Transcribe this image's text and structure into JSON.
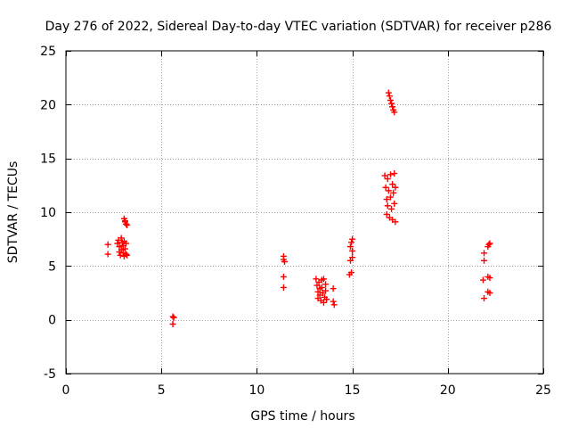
{
  "chart_data": {
    "type": "scatter",
    "title": "Day 276 of 2022, Sidereal Day-to-day VTEC variation (SDTVAR) for receiver p286",
    "xlabel": "GPS time / hours",
    "ylabel": "SDTVAR / TECUs",
    "xlim": [
      0,
      25
    ],
    "ylim": [
      -5,
      25
    ],
    "xticks": [
      0,
      5,
      10,
      15,
      20,
      25
    ],
    "yticks": [
      -5,
      0,
      5,
      10,
      15,
      20,
      25
    ],
    "grid": true,
    "marker": "+",
    "color": "#ff0000",
    "series": [
      {
        "name": "SDTVAR",
        "points": [
          [
            2.2,
            7.0
          ],
          [
            2.2,
            6.1
          ],
          [
            2.7,
            7.1
          ],
          [
            2.75,
            7.4
          ],
          [
            2.8,
            6.8
          ],
          [
            2.8,
            6.3
          ],
          [
            2.85,
            6.0
          ],
          [
            2.9,
            7.6
          ],
          [
            2.9,
            6.5
          ],
          [
            2.95,
            7.2
          ],
          [
            3.0,
            6.9
          ],
          [
            3.0,
            6.2
          ],
          [
            3.05,
            7.3
          ],
          [
            3.05,
            5.9
          ],
          [
            3.1,
            6.6
          ],
          [
            3.15,
            7.1
          ],
          [
            3.15,
            6.1
          ],
          [
            3.2,
            6.0
          ],
          [
            3.05,
            9.4
          ],
          [
            3.1,
            9.1
          ],
          [
            3.15,
            8.9
          ],
          [
            3.1,
            9.2
          ],
          [
            3.2,
            8.8
          ],
          [
            5.6,
            0.3
          ],
          [
            5.6,
            -0.4
          ],
          [
            5.65,
            0.2
          ],
          [
            11.4,
            5.9
          ],
          [
            11.4,
            5.6
          ],
          [
            11.45,
            5.4
          ],
          [
            11.4,
            4.0
          ],
          [
            11.4,
            3.0
          ],
          [
            13.1,
            3.8
          ],
          [
            13.15,
            3.2
          ],
          [
            13.2,
            2.6
          ],
          [
            13.2,
            2.0
          ],
          [
            13.25,
            3.5
          ],
          [
            13.3,
            2.9
          ],
          [
            13.3,
            2.3
          ],
          [
            13.35,
            1.8
          ],
          [
            13.4,
            3.7
          ],
          [
            13.4,
            3.0
          ],
          [
            13.45,
            2.5
          ],
          [
            13.5,
            1.6
          ],
          [
            13.5,
            3.8
          ],
          [
            13.55,
            2.1
          ],
          [
            13.6,
            3.3
          ],
          [
            13.6,
            2.7
          ],
          [
            13.65,
            1.9
          ],
          [
            14.0,
            2.9
          ],
          [
            14.0,
            1.7
          ],
          [
            14.05,
            1.4
          ],
          [
            14.85,
            4.2
          ],
          [
            14.9,
            6.8
          ],
          [
            14.9,
            5.5
          ],
          [
            14.95,
            7.2
          ],
          [
            14.95,
            4.4
          ],
          [
            15.0,
            6.4
          ],
          [
            15.0,
            5.8
          ],
          [
            15.0,
            7.5
          ],
          [
            16.7,
            13.4
          ],
          [
            16.75,
            12.3
          ],
          [
            16.8,
            11.2
          ],
          [
            16.8,
            9.8
          ],
          [
            16.85,
            13.1
          ],
          [
            16.85,
            10.6
          ],
          [
            16.9,
            12.0
          ],
          [
            16.95,
            9.5
          ],
          [
            17.0,
            13.5
          ],
          [
            17.0,
            11.4
          ],
          [
            17.05,
            10.3
          ],
          [
            17.1,
            12.6
          ],
          [
            17.1,
            9.3
          ],
          [
            17.15,
            11.8
          ],
          [
            17.2,
            13.6
          ],
          [
            17.2,
            10.8
          ],
          [
            17.25,
            12.3
          ],
          [
            17.25,
            9.1
          ],
          [
            16.9,
            21.1
          ],
          [
            16.95,
            20.8
          ],
          [
            17.0,
            20.4
          ],
          [
            17.05,
            20.1
          ],
          [
            17.1,
            19.8
          ],
          [
            17.15,
            19.5
          ],
          [
            17.2,
            19.3
          ],
          [
            21.9,
            6.2
          ],
          [
            21.9,
            5.5
          ],
          [
            21.85,
            3.7
          ],
          [
            21.9,
            2.0
          ],
          [
            22.1,
            6.8
          ],
          [
            22.15,
            7.0
          ],
          [
            22.2,
            7.1
          ],
          [
            22.1,
            4.0
          ],
          [
            22.2,
            3.9
          ],
          [
            22.1,
            2.6
          ],
          [
            22.2,
            2.5
          ]
        ]
      }
    ]
  }
}
